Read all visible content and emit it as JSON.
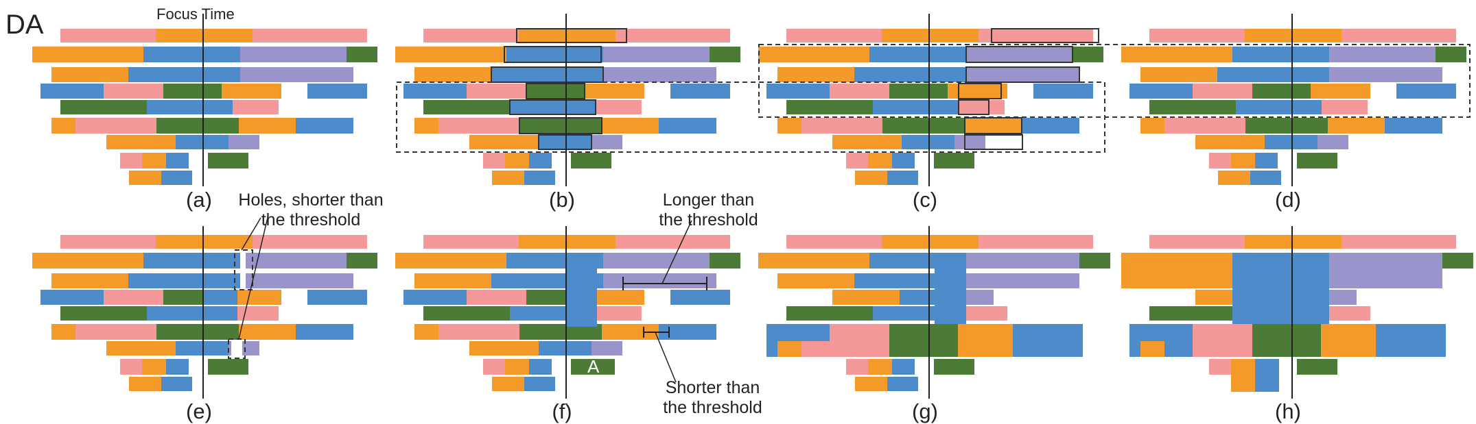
{
  "figure": {
    "title": "DA",
    "focus_label": "Focus Time",
    "panels": [
      {
        "id": "a",
        "label": "(a)"
      },
      {
        "id": "b",
        "label": "(b)"
      },
      {
        "id": "c",
        "label": "(c)"
      },
      {
        "id": "d",
        "label": "(d)"
      },
      {
        "id": "e",
        "label": "(e)"
      },
      {
        "id": "f",
        "label": "(f)"
      },
      {
        "id": "g",
        "label": "(g)"
      },
      {
        "id": "h",
        "label": "(h)"
      }
    ],
    "annotations": {
      "holes_line1": "Holes, shorter than",
      "holes_line2": "the threshold",
      "longer_line1": "Longer than",
      "longer_line2": "the threshold",
      "shorter_line1": "Shorter than",
      "shorter_line2": "the threshold",
      "block_label": "A"
    }
  },
  "colors": {
    "pink": "#F4989A",
    "orange": "#F39A2B",
    "blue": "#4E8BCB",
    "purple": "#9995CA",
    "green": "#4B7B37",
    "line": "#222222"
  }
}
